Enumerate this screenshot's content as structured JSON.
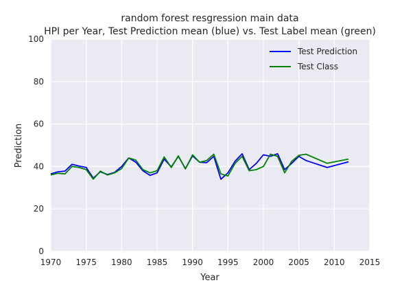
{
  "chart_data": {
    "type": "line",
    "title": "random forest resgression main data",
    "subtitle": "HPI per Year, Test Prediction mean (blue) vs. Test Label mean (green)",
    "xlabel": "Year",
    "ylabel": "Prediction",
    "xlim": [
      1970,
      2015
    ],
    "ylim": [
      0,
      100
    ],
    "xticks": [
      1970,
      1975,
      1980,
      1985,
      1990,
      1995,
      2000,
      2005,
      2010,
      2015
    ],
    "yticks": [
      0,
      20,
      40,
      60,
      80,
      100
    ],
    "grid": true,
    "legend_position": "top-right",
    "background": "#eaeaf2",
    "series": [
      {
        "name": "Test Prediction",
        "color": "#0000ff",
        "x": [
          1970,
          1971,
          1972,
          1973,
          1974,
          1975,
          1976,
          1977,
          1978,
          1979,
          1980,
          1981,
          1982,
          1983,
          1984,
          1985,
          1986,
          1987,
          1988,
          1989,
          1990,
          1991,
          1992,
          1993,
          1994,
          1995,
          1996,
          1997,
          1998,
          1999,
          2000,
          2001,
          2002,
          2003,
          2004,
          2005,
          2006,
          2009,
          2012
        ],
        "y": [
          36.5,
          37.5,
          37.8,
          41.0,
          40.2,
          39.5,
          34.5,
          37.5,
          36.2,
          37.2,
          40.0,
          44.0,
          42.0,
          38.0,
          35.8,
          37.0,
          43.5,
          39.8,
          44.8,
          39.0,
          45.0,
          42.0,
          41.8,
          44.8,
          34.0,
          37.0,
          42.5,
          46.0,
          38.5,
          41.5,
          45.5,
          44.8,
          46.0,
          38.5,
          41.5,
          44.8,
          42.8,
          39.5,
          42.2
        ]
      },
      {
        "name": "Test Class",
        "color": "#008000",
        "x": [
          1970,
          1971,
          1972,
          1973,
          1974,
          1975,
          1976,
          1977,
          1978,
          1979,
          1980,
          1981,
          1982,
          1983,
          1984,
          1985,
          1986,
          1987,
          1988,
          1989,
          1990,
          1991,
          1992,
          1993,
          1994,
          1995,
          1996,
          1997,
          1998,
          1999,
          2000,
          2001,
          2002,
          2003,
          2004,
          2005,
          2006,
          2009,
          2012
        ],
        "y": [
          36.0,
          36.8,
          36.5,
          40.0,
          39.5,
          38.5,
          34.0,
          37.8,
          36.0,
          37.0,
          39.0,
          44.0,
          43.0,
          38.5,
          37.0,
          38.0,
          44.5,
          39.5,
          45.0,
          38.8,
          45.5,
          42.0,
          42.8,
          45.8,
          36.5,
          35.5,
          41.5,
          44.8,
          38.0,
          38.5,
          40.0,
          45.8,
          44.8,
          37.0,
          42.5,
          45.2,
          45.8,
          41.5,
          43.5
        ]
      }
    ]
  }
}
